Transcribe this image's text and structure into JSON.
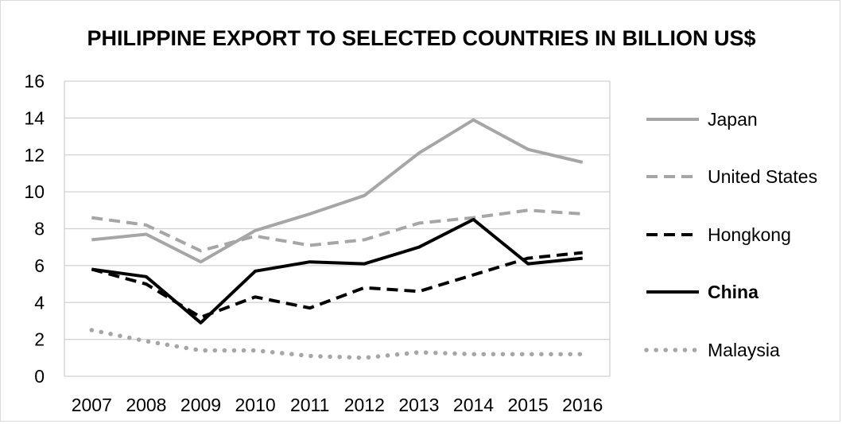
{
  "chart_data": {
    "type": "line",
    "title": "PHILIPPINE EXPORT TO SELECTED COUNTRIES IN BILLION US$",
    "xlabel": "",
    "ylabel": "",
    "ylim": [
      0,
      16
    ],
    "yticks": [
      "0",
      "2",
      "4",
      "6",
      "8",
      "10",
      "12",
      "14",
      "16"
    ],
    "categories": [
      "2007",
      "2008",
      "2009",
      "2010",
      "2011",
      "2012",
      "2013",
      "2014",
      "2015",
      "2016"
    ],
    "grid": true,
    "legend_position": "right",
    "series": [
      {
        "name": "Japan",
        "values": [
          7.4,
          7.7,
          6.2,
          7.9,
          8.8,
          9.8,
          12.1,
          13.9,
          12.3,
          11.6
        ],
        "color": "#a6a6a6",
        "style": "solid",
        "bold": false
      },
      {
        "name": "United States",
        "values": [
          8.6,
          8.2,
          6.8,
          7.6,
          7.1,
          7.4,
          8.3,
          8.6,
          9.0,
          8.8
        ],
        "color": "#a6a6a6",
        "style": "dashed",
        "bold": false
      },
      {
        "name": "Hongkong",
        "values": [
          5.8,
          5.0,
          3.2,
          4.3,
          3.7,
          4.8,
          4.6,
          5.5,
          6.4,
          6.7
        ],
        "color": "#000000",
        "style": "dashed",
        "bold": false
      },
      {
        "name": "China",
        "values": [
          5.8,
          5.4,
          2.9,
          5.7,
          6.2,
          6.1,
          7.0,
          8.5,
          6.1,
          6.4
        ],
        "color": "#000000",
        "style": "solid",
        "bold": true
      },
      {
        "name": "Malaysia",
        "values": [
          2.5,
          1.9,
          1.4,
          1.4,
          1.1,
          1.0,
          1.3,
          1.2,
          1.2,
          1.2
        ],
        "color": "#a6a6a6",
        "style": "dotted",
        "bold": false
      }
    ]
  }
}
